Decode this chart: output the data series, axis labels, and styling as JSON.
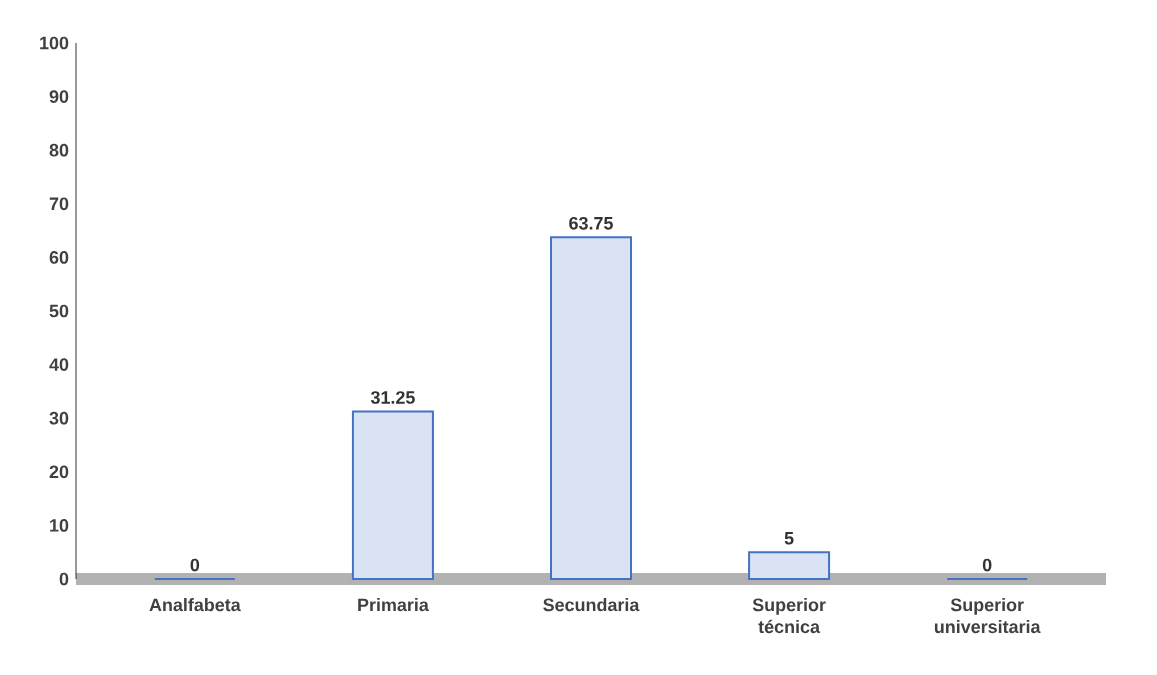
{
  "chart_data": {
    "type": "bar",
    "categories": [
      "Analfabeta",
      "Primaria",
      "Secundaria",
      "Superior técnica",
      "Superior universitaria"
    ],
    "values": [
      0,
      31.25,
      63.75,
      5,
      0
    ],
    "color": "#4472c4",
    "ylim": [
      0,
      100
    ],
    "yticks": [
      0,
      10,
      20,
      30,
      40,
      50,
      60,
      70,
      80,
      90,
      100
    ],
    "data_labels": true,
    "grid": false
  }
}
